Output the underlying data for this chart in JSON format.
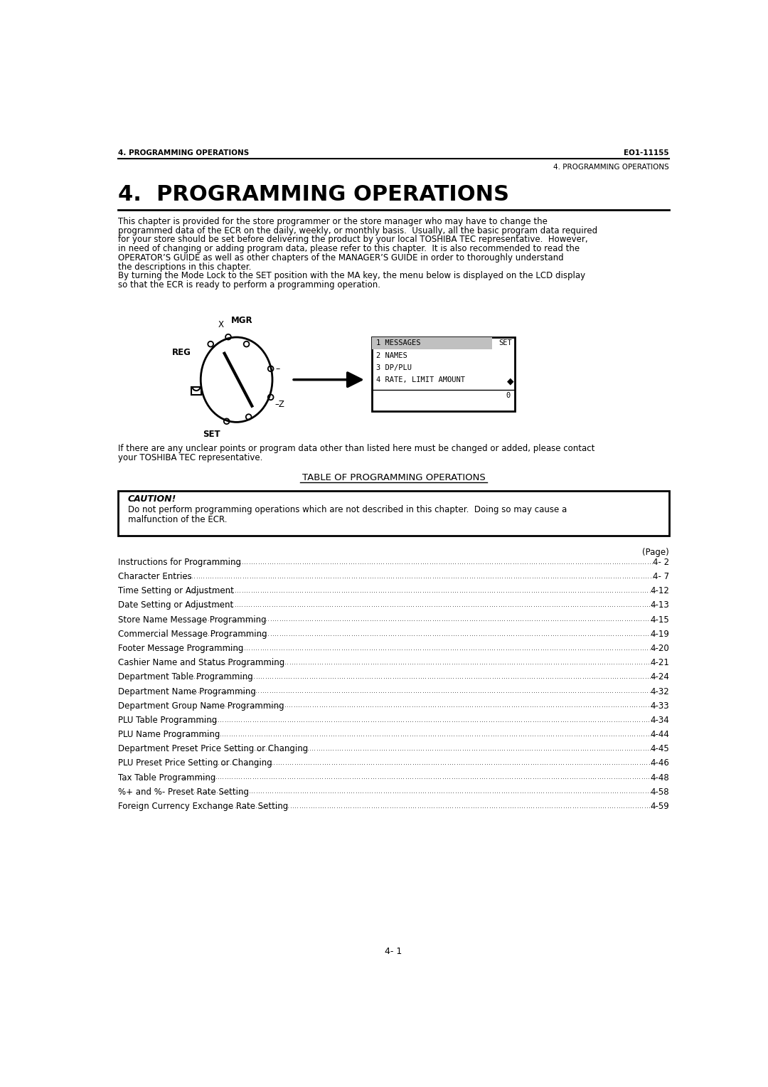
{
  "header_left": "4. PROGRAMMING OPERATIONS",
  "header_right": "EO1-11155",
  "subheader_right": "4. PROGRAMMING OPERATIONS",
  "main_title": "4.  PROGRAMMING OPERATIONS",
  "intro_lines": [
    "This chapter is provided for the store programmer or the store manager who may have to change the",
    "programmed data of the ECR on the daily, weekly, or monthly basis.  Usually, all the basic program data required",
    "for your store should be set before delivering the product by your local TOSHIBA TEC representative.  However,",
    "in need of changing or adding program data, please refer to this chapter.  It is also recommended to read the",
    "OPERATOR’S GUIDE as well as other chapters of the MANAGER’S GUIDE in order to thoroughly understand",
    "the descriptions in this chapter.",
    "By turning the Mode Lock to the SET position with the MA key, the menu below is displayed on the LCD display",
    "so that the ECR is ready to perform a programming operation."
  ],
  "intro_bold_line_idx": 6,
  "after_diagram_lines": [
    "If there are any unclear points or program data other than listed here must be changed or added, please contact",
    "your TOSHIBA TEC representative."
  ],
  "table_title": "TABLE OF PROGRAMMING OPERATIONS",
  "caution_title": "CAUTION!",
  "caution_lines": [
    "Do not perform programming operations which are not described in this chapter.  Doing so may cause a",
    "malfunction of the ECR."
  ],
  "page_label": "(Page)",
  "toc_entries": [
    [
      "Instructions for Programming",
      "4- 2"
    ],
    [
      "Character Entries ",
      "4- 7"
    ],
    [
      "Time Setting or Adjustment ",
      "4-12"
    ],
    [
      "Date Setting or Adjustment",
      "4-13"
    ],
    [
      "Store Name Message Programming ",
      "4-15"
    ],
    [
      "Commercial Message Programming ",
      "4-19"
    ],
    [
      "Footer Message Programming ",
      "4-20"
    ],
    [
      "Cashier Name and Status Programming",
      "4-21"
    ],
    [
      "Department Table Programming ",
      "4-24"
    ],
    [
      "Department Name Programming",
      "4-32"
    ],
    [
      "Department Group Name Programming",
      "4-33"
    ],
    [
      "PLU Table Programming ",
      "4-34"
    ],
    [
      "PLU Name Programming",
      "4-44"
    ],
    [
      "Department Preset Price Setting or Changing ",
      "4-45"
    ],
    [
      "PLU Preset Price Setting or Changing ",
      "4-46"
    ],
    [
      "Tax Table Programming ",
      "4-48"
    ],
    [
      "%+ and %- Preset Rate Setting",
      "4-58"
    ],
    [
      "Foreign Currency Exchange Rate Setting ",
      "4-59"
    ]
  ],
  "footer_text": "4- 1",
  "bg_color": "#ffffff",
  "text_color": "#000000"
}
